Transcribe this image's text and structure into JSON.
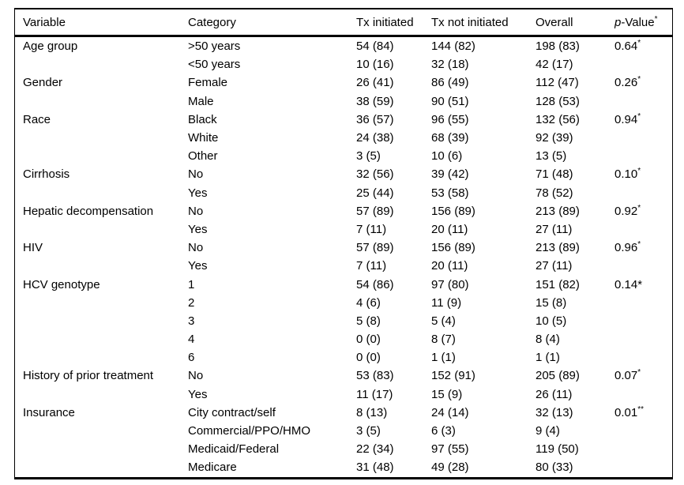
{
  "page": {
    "background_color": "#ffffff",
    "text_color": "#000000",
    "rule_color": "#000000"
  },
  "table": {
    "header": {
      "variable": "Variable",
      "category": "Category",
      "tx_initiated": "Tx initiated",
      "tx_not_initiated": "Tx not initiated",
      "overall": "Overall",
      "p_value_italic": "p",
      "p_value_rest": "-Value",
      "p_value_sup": "*"
    },
    "rows": [
      {
        "variable": "Age group",
        "category": ">50 years",
        "tx_initiated": "54 (84)",
        "tx_not_initiated": "144 (82)",
        "overall": "198 (83)",
        "p": "0.64",
        "p_marker": "*",
        "p_marker_sup": true
      },
      {
        "variable": "",
        "category": "<50 years",
        "tx_initiated": "10 (16)",
        "tx_not_initiated": "32 (18)",
        "overall": "42 (17)",
        "p": "",
        "p_marker": "",
        "p_marker_sup": false
      },
      {
        "variable": "Gender",
        "category": "Female",
        "tx_initiated": "26 (41)",
        "tx_not_initiated": "86 (49)",
        "overall": "112 (47)",
        "p": "0.26",
        "p_marker": "*",
        "p_marker_sup": true
      },
      {
        "variable": "",
        "category": "Male",
        "tx_initiated": "38 (59)",
        "tx_not_initiated": "90 (51)",
        "overall": "128 (53)",
        "p": "",
        "p_marker": "",
        "p_marker_sup": false
      },
      {
        "variable": "Race",
        "category": "Black",
        "tx_initiated": "36 (57)",
        "tx_not_initiated": "96 (55)",
        "overall": "132 (56)",
        "p": "0.94",
        "p_marker": "*",
        "p_marker_sup": true
      },
      {
        "variable": "",
        "category": "White",
        "tx_initiated": "24 (38)",
        "tx_not_initiated": "68 (39)",
        "overall": "92 (39)",
        "p": "",
        "p_marker": "",
        "p_marker_sup": false
      },
      {
        "variable": "",
        "category": "Other",
        "tx_initiated": "3 (5)",
        "tx_not_initiated": "10 (6)",
        "overall": "13 (5)",
        "p": "",
        "p_marker": "",
        "p_marker_sup": false
      },
      {
        "variable": "Cirrhosis",
        "category": "No",
        "tx_initiated": "32 (56)",
        "tx_not_initiated": "39 (42)",
        "overall": "71 (48)",
        "p": "0.10",
        "p_marker": "*",
        "p_marker_sup": true
      },
      {
        "variable": "",
        "category": "Yes",
        "tx_initiated": "25 (44)",
        "tx_not_initiated": "53 (58)",
        "overall": "78 (52)",
        "p": "",
        "p_marker": "",
        "p_marker_sup": false
      },
      {
        "variable": "Hepatic decompensation",
        "category": "No",
        "tx_initiated": "57 (89)",
        "tx_not_initiated": "156 (89)",
        "overall": "213 (89)",
        "p": "0.92",
        "p_marker": "*",
        "p_marker_sup": true
      },
      {
        "variable": "",
        "category": "Yes",
        "tx_initiated": "7 (11)",
        "tx_not_initiated": "20 (11)",
        "overall": "27 (11)",
        "p": "",
        "p_marker": "",
        "p_marker_sup": false
      },
      {
        "variable": "HIV",
        "category": "No",
        "tx_initiated": "57 (89)",
        "tx_not_initiated": "156 (89)",
        "overall": "213 (89)",
        "p": "0.96",
        "p_marker": "*",
        "p_marker_sup": true
      },
      {
        "variable": "",
        "category": "Yes",
        "tx_initiated": "7 (11)",
        "tx_not_initiated": "20 (11)",
        "overall": "27 (11)",
        "p": "",
        "p_marker": "",
        "p_marker_sup": false
      },
      {
        "variable": "HCV genotype",
        "category": "1",
        "tx_initiated": "54 (86)",
        "tx_not_initiated": "97 (80)",
        "overall": "151 (82)",
        "p": "0.14",
        "p_marker": "*",
        "p_marker_sup": false
      },
      {
        "variable": "",
        "category": "2",
        "tx_initiated": "4 (6)",
        "tx_not_initiated": "11 (9)",
        "overall": "15 (8)",
        "p": "",
        "p_marker": "",
        "p_marker_sup": false
      },
      {
        "variable": "",
        "category": "3",
        "tx_initiated": "5 (8)",
        "tx_not_initiated": "5 (4)",
        "overall": "10 (5)",
        "p": "",
        "p_marker": "",
        "p_marker_sup": false
      },
      {
        "variable": "",
        "category": "4",
        "tx_initiated": "0 (0)",
        "tx_not_initiated": "8 (7)",
        "overall": "8 (4)",
        "p": "",
        "p_marker": "",
        "p_marker_sup": false
      },
      {
        "variable": "",
        "category": "6",
        "tx_initiated": "0 (0)",
        "tx_not_initiated": "1 (1)",
        "overall": "1 (1)",
        "p": "",
        "p_marker": "",
        "p_marker_sup": false
      },
      {
        "variable": "History of prior treatment",
        "category": "No",
        "tx_initiated": "53 (83)",
        "tx_not_initiated": "152 (91)",
        "overall": "205 (89)",
        "p": "0.07",
        "p_marker": "*",
        "p_marker_sup": true
      },
      {
        "variable": "",
        "category": "Yes",
        "tx_initiated": "11 (17)",
        "tx_not_initiated": "15 (9)",
        "overall": "26 (11)",
        "p": "",
        "p_marker": "",
        "p_marker_sup": false
      },
      {
        "variable": "Insurance",
        "category": "City contract/self",
        "tx_initiated": "8 (13)",
        "tx_not_initiated": "24 (14)",
        "overall": "32 (13)",
        "p": "0.01",
        "p_marker": "**",
        "p_marker_sup": true
      },
      {
        "variable": "",
        "category": "Commercial/PPO/HMO",
        "tx_initiated": "3 (5)",
        "tx_not_initiated": "6 (3)",
        "overall": "9 (4)",
        "p": "",
        "p_marker": "",
        "p_marker_sup": false
      },
      {
        "variable": "",
        "category": "Medicaid/Federal",
        "tx_initiated": "22 (34)",
        "tx_not_initiated": "97 (55)",
        "overall": "119 (50)",
        "p": "",
        "p_marker": "",
        "p_marker_sup": false
      },
      {
        "variable": "",
        "category": "Medicare",
        "tx_initiated": "31 (48)",
        "tx_not_initiated": "49 (28)",
        "overall": "80 (33)",
        "p": "",
        "p_marker": "",
        "p_marker_sup": false
      }
    ]
  }
}
